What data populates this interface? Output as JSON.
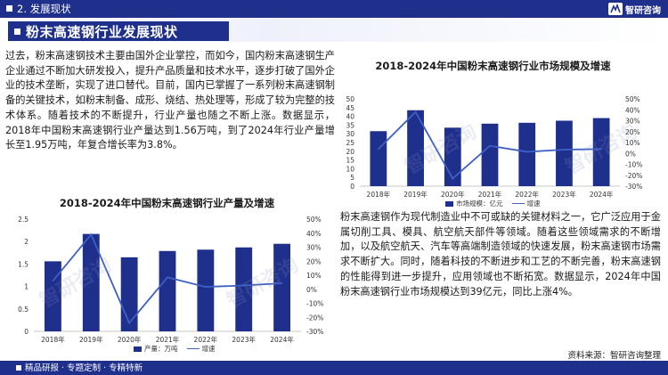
{
  "header": {
    "section_label": "2. 发展现状",
    "logo_text": "智研咨询",
    "page_title": "粉末高速钢行业发展现状"
  },
  "paragraphs": {
    "intro": "过去，粉末高速钢技术主要由国外企业掌控，而如今，国内粉末高速钢生产企业通过不断加大研发投入，提升产品质量和技术水平，逐步打破了国外企业的技术垄断，实现了进口替代。目前，国内已掌握了一系列粉末高速钢制备的关键技术，如粉末制备、成形、烧结、热处理等，形成了较为完整的技术体系。随着技术的不断提升，行业产量也随之不断上涨。数据显示，2018年中国粉末高速钢行业产量达到1.56万吨，到了2024年行业产量增长至1.95万吨，年复合增长率为3.8%。",
    "market": "粉末高速钢作为现代制造业中不可或缺的关键材料之一，它广泛应用于金属切削工具、模具、航空航天部件等领域。随着这些领域需求的不断增加，以及航空航天、汽车等高端制造领域的快速发展，粉末高速钢市场需求不断扩大。同时，随着科技的不断进步和工艺的不断完善，粉末高速钢的性能得到进一步提升，应用领域也不断拓宽。数据显示，2024年中国粉末高速钢行业市场规模达到39亿元，同比上涨4%。"
  },
  "footer": {
    "left": "精品研报 · 专题定制 · 专精特新",
    "source": "资料来源：智研咨询整理"
  },
  "watermark": "智研咨询",
  "colors": {
    "navy": "#1f2f8c",
    "line": "#3e5fc4"
  },
  "chart_data": [
    {
      "type": "bar",
      "title": "2018-2024年中国粉末高速钢行业产量及增速",
      "categories": [
        "2018年",
        "2019年",
        "2020年",
        "2021年",
        "2022年",
        "2023年",
        "2024年"
      ],
      "series": [
        {
          "name": "产量：万吨",
          "type": "bar",
          "axis": "left",
          "values": [
            1.56,
            2.17,
            1.65,
            1.79,
            1.82,
            1.87,
            1.95
          ]
        },
        {
          "name": "增速",
          "type": "line",
          "axis": "right",
          "values": [
            6.0,
            39.0,
            -24.0,
            8.5,
            1.7,
            2.7,
            4.3
          ]
        }
      ],
      "left_axis": {
        "ticks": [
          "0",
          "0.5",
          "1",
          "1.5",
          "2",
          "2.5"
        ],
        "min": 0,
        "max": 2.5
      },
      "right_axis": {
        "ticks": [
          "-30%",
          "-20%",
          "-10%",
          "0%",
          "10%",
          "20%",
          "30%",
          "40%",
          "50%"
        ],
        "min": -30,
        "max": 50
      },
      "legend_position": "bottom-center"
    },
    {
      "type": "bar",
      "title": "2018-2024年中国粉末高速钢行业市场规模及增速",
      "categories": [
        "2018年",
        "2019年",
        "2020年",
        "2021年",
        "2022年",
        "2023年",
        "2024年"
      ],
      "series": [
        {
          "name": "市场规模：亿元",
          "type": "bar",
          "axis": "left",
          "values": [
            31.5,
            43.5,
            33.5,
            35.8,
            36.3,
            37.5,
            39.0
          ]
        },
        {
          "name": "增速",
          "type": "line",
          "axis": "right",
          "values": [
            4.0,
            38.0,
            -23.0,
            7.0,
            1.5,
            3.5,
            4.0
          ]
        }
      ],
      "left_axis": {
        "ticks": [
          "0",
          "5",
          "10",
          "15",
          "20",
          "25",
          "30",
          "35",
          "40",
          "45",
          "50"
        ],
        "min": 0,
        "max": 50
      },
      "right_axis": {
        "ticks": [
          "-30%",
          "-20%",
          "-10%",
          "0%",
          "10%",
          "20%",
          "30%",
          "40%",
          "50%"
        ],
        "min": -30,
        "max": 50
      },
      "legend_position": "bottom-center"
    }
  ]
}
